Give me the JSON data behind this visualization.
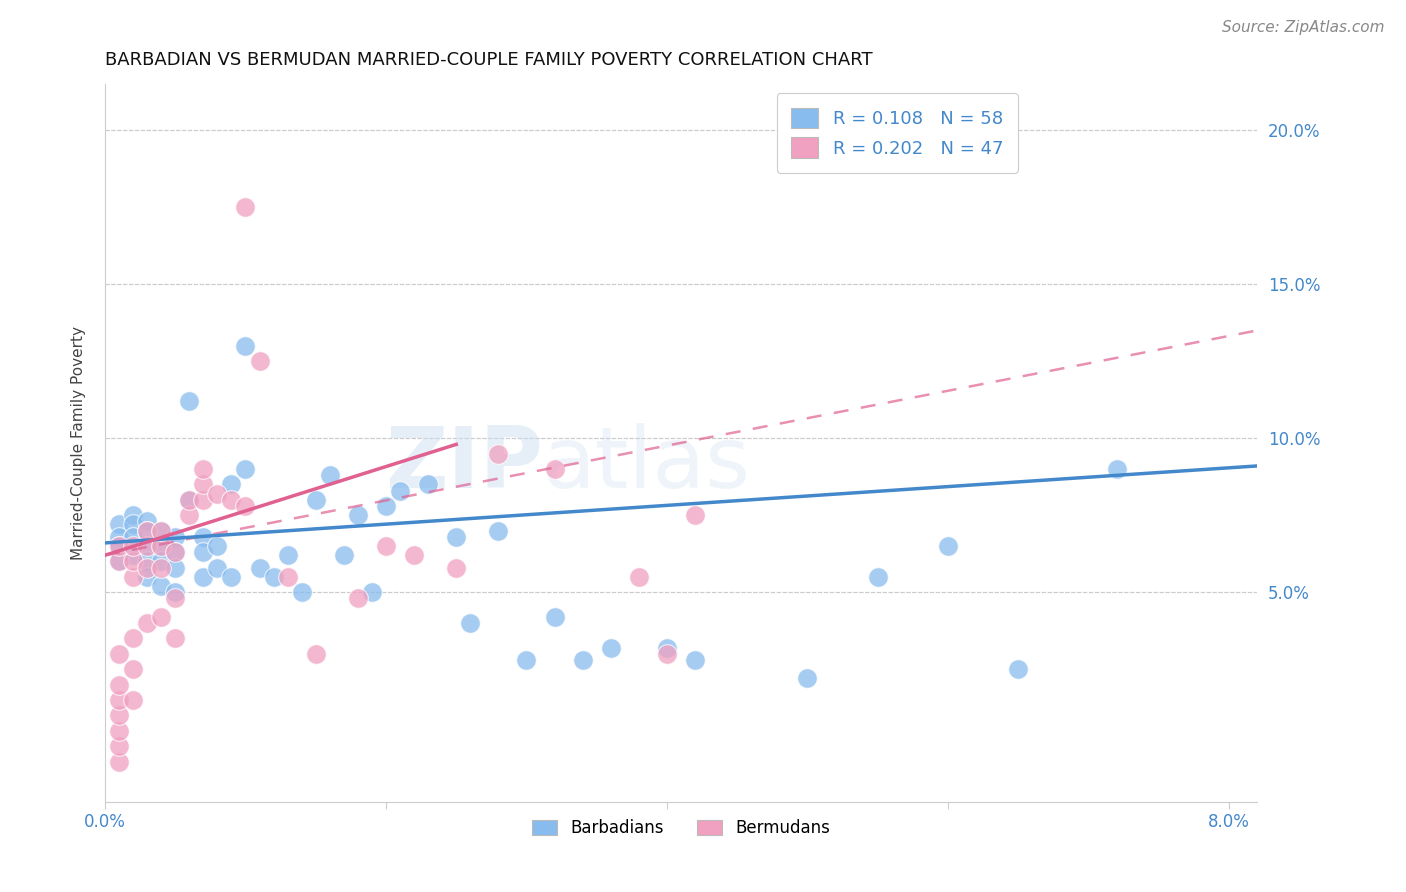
{
  "title": "BARBADIAN VS BERMUDAN MARRIED-COUPLE FAMILY POVERTY CORRELATION CHART",
  "source": "Source: ZipAtlas.com",
  "ylabel": "Married-Couple Family Poverty",
  "xlim": [
    0.0,
    0.082
  ],
  "ylim": [
    -0.018,
    0.215
  ],
  "xticks": [
    0.0,
    0.02,
    0.04,
    0.06,
    0.08
  ],
  "xtick_labels": [
    "0.0%",
    "",
    "",
    "",
    "8.0%"
  ],
  "yticks": [
    0.05,
    0.1,
    0.15,
    0.2
  ],
  "ytick_labels": [
    "5.0%",
    "10.0%",
    "15.0%",
    "20.0%"
  ],
  "legend_blue_r": "0.108",
  "legend_blue_n": "58",
  "legend_pink_r": "0.202",
  "legend_pink_n": "47",
  "color_blue": "#88bbee",
  "color_pink": "#f0a0c0",
  "color_line_blue": "#4488cc",
  "color_line_pink": "#e06090",
  "watermark_text": "ZIPatlas",
  "blue_x": [
    0.001,
    0.001,
    0.001,
    0.001,
    0.002,
    0.002,
    0.002,
    0.002,
    0.003,
    0.003,
    0.003,
    0.003,
    0.003,
    0.004,
    0.004,
    0.004,
    0.004,
    0.005,
    0.005,
    0.005,
    0.005,
    0.006,
    0.006,
    0.007,
    0.007,
    0.007,
    0.008,
    0.008,
    0.009,
    0.009,
    0.01,
    0.01,
    0.011,
    0.012,
    0.013,
    0.014,
    0.015,
    0.016,
    0.017,
    0.018,
    0.019,
    0.02,
    0.021,
    0.023,
    0.025,
    0.026,
    0.028,
    0.03,
    0.032,
    0.034,
    0.036,
    0.04,
    0.042,
    0.05,
    0.055,
    0.06,
    0.065,
    0.072
  ],
  "blue_y": [
    0.072,
    0.068,
    0.065,
    0.06,
    0.075,
    0.072,
    0.068,
    0.062,
    0.073,
    0.07,
    0.065,
    0.06,
    0.055,
    0.07,
    0.065,
    0.06,
    0.052,
    0.068,
    0.063,
    0.058,
    0.05,
    0.112,
    0.08,
    0.068,
    0.063,
    0.055,
    0.065,
    0.058,
    0.085,
    0.055,
    0.13,
    0.09,
    0.058,
    0.055,
    0.062,
    0.05,
    0.08,
    0.088,
    0.062,
    0.075,
    0.05,
    0.078,
    0.083,
    0.085,
    0.068,
    0.04,
    0.07,
    0.028,
    0.042,
    0.028,
    0.032,
    0.032,
    0.028,
    0.022,
    0.055,
    0.065,
    0.025,
    0.09
  ],
  "pink_x": [
    0.001,
    0.001,
    0.001,
    0.001,
    0.001,
    0.001,
    0.001,
    0.001,
    0.001,
    0.002,
    0.002,
    0.002,
    0.002,
    0.002,
    0.002,
    0.003,
    0.003,
    0.003,
    0.003,
    0.004,
    0.004,
    0.004,
    0.004,
    0.005,
    0.005,
    0.005,
    0.006,
    0.006,
    0.007,
    0.007,
    0.007,
    0.008,
    0.009,
    0.01,
    0.01,
    0.011,
    0.013,
    0.015,
    0.018,
    0.02,
    0.022,
    0.025,
    0.028,
    0.032,
    0.038,
    0.04,
    0.042
  ],
  "pink_y": [
    -0.005,
    0.0,
    0.005,
    0.01,
    0.015,
    0.02,
    0.03,
    0.06,
    0.065,
    0.015,
    0.025,
    0.035,
    0.055,
    0.06,
    0.065,
    0.04,
    0.058,
    0.065,
    0.07,
    0.042,
    0.058,
    0.065,
    0.07,
    0.035,
    0.048,
    0.063,
    0.075,
    0.08,
    0.08,
    0.085,
    0.09,
    0.082,
    0.08,
    0.078,
    0.175,
    0.125,
    0.055,
    0.03,
    0.048,
    0.065,
    0.062,
    0.058,
    0.095,
    0.09,
    0.055,
    0.03,
    0.075
  ]
}
